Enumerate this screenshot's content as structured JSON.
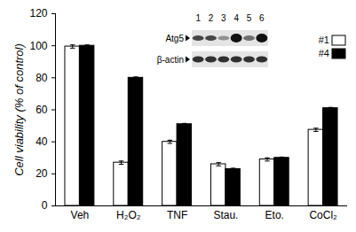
{
  "chart_data": {
    "type": "bar",
    "categories": [
      "Veh",
      "H₂O₂",
      "TNF",
      "Stau.",
      "Eto.",
      "CoCl₂"
    ],
    "series": [
      {
        "name": "#1",
        "color": "#ffffff",
        "values": [
          99.5,
          27,
          40,
          26,
          29,
          47.5
        ],
        "errors": [
          1,
          1,
          1,
          1,
          1,
          1
        ]
      },
      {
        "name": "#4",
        "color": "#000000",
        "values": [
          100,
          80,
          51,
          23,
          30,
          61
        ],
        "errors": [
          0.5,
          0.5,
          0.5,
          0.5,
          0.5,
          0.5
        ]
      }
    ],
    "ylabel": "Cell viability (% of control)",
    "ylim": [
      0,
      120
    ],
    "yticks": [
      0,
      20,
      40,
      60,
      80,
      100,
      120
    ],
    "grid": false,
    "legend": "upper right",
    "inset": {
      "lanes": [
        1,
        2,
        3,
        4,
        5,
        6
      ],
      "rows": [
        "Atg5",
        "β-actin"
      ]
    }
  }
}
